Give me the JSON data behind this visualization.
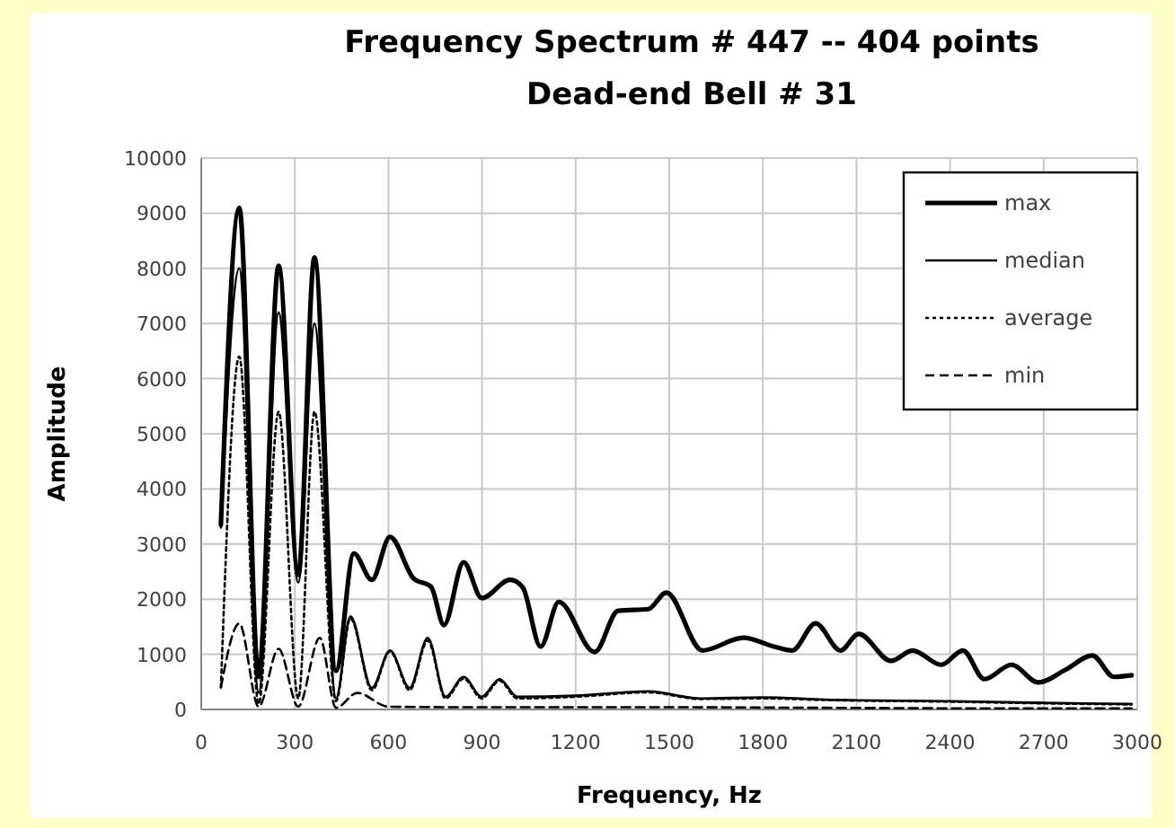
{
  "chart_data": {
    "type": "line",
    "title": "Frequency Spectrum # 447 -- 404 points",
    "subtitle": "Dead-end Bell # 31",
    "xlabel": "Frequency, Hz",
    "ylabel": "Amplitude",
    "xlim": [
      0,
      3000
    ],
    "xticks": [
      0,
      300,
      600,
      900,
      1200,
      1500,
      1800,
      2100,
      2400,
      2700,
      3000
    ],
    "ylim": [
      0,
      10000
    ],
    "yticks": [
      0,
      1000,
      2000,
      3000,
      4000,
      5000,
      6000,
      7000,
      8000,
      9000,
      10000
    ],
    "grid": true,
    "legend": "top right",
    "marker": "none",
    "series": [
      {
        "name": "max",
        "color": "#000000",
        "line_style": "solid",
        "x": [
          63,
          122,
          184,
          248,
          311,
          363,
          432,
          489,
          547,
          605,
          680,
          737,
          778,
          841,
          899,
          990,
          1030,
          1088,
          1146,
          1261,
          1336,
          1433,
          1491,
          1606,
          1738,
          1836,
          1894,
          1969,
          2049,
          2107,
          2211,
          2280,
          2372,
          2441,
          2510,
          2597,
          2683,
          2770,
          2856,
          2925,
          2982
        ],
        "values": [
          3350,
          9100,
          590,
          8050,
          2440,
          8200,
          700,
          2830,
          2350,
          3130,
          2380,
          2220,
          1530,
          2670,
          2020,
          2350,
          2220,
          1140,
          1950,
          1040,
          1790,
          1820,
          2120,
          1070,
          1300,
          1140,
          1070,
          1560,
          1070,
          1370,
          880,
          1070,
          810,
          1070,
          550,
          810,
          490,
          720,
          980,
          590,
          620
        ]
      },
      {
        "name": "median",
        "color": "#000000",
        "line_style": "solid",
        "x": [
          63,
          122,
          184,
          248,
          311,
          363,
          432,
          478,
          547,
          605,
          668,
          726,
          783,
          841,
          899,
          956,
          1013,
          1200,
          1433,
          1600,
          1800,
          2000,
          2400,
          2700,
          2982
        ],
        "values": [
          3300,
          8000,
          300,
          7200,
          2300,
          7000,
          200,
          1690,
          390,
          1070,
          390,
          1300,
          230,
          590,
          230,
          550,
          230,
          250,
          330,
          200,
          220,
          180,
          150,
          120,
          100
        ]
      },
      {
        "name": "average",
        "color": "#000000",
        "line_style": "dotted",
        "x": [
          63,
          122,
          184,
          248,
          311,
          363,
          432,
          478,
          547,
          605,
          668,
          726,
          783,
          841,
          899,
          956,
          1013,
          1200,
          1433,
          1600,
          1800,
          2000,
          2400,
          2700,
          2982
        ],
        "values": [
          400,
          6400,
          100,
          5400,
          200,
          5400,
          150,
          1650,
          350,
          1050,
          350,
          1250,
          200,
          560,
          200,
          520,
          200,
          230,
          310,
          190,
          200,
          170,
          140,
          110,
          90
        ]
      },
      {
        "name": "min",
        "color": "#000000",
        "line_style": "dashed",
        "x": [
          63,
          122,
          184,
          248,
          311,
          380,
          432,
          500,
          600,
          900,
          1200,
          1500,
          2000,
          2500,
          2982
        ],
        "values": [
          400,
          1560,
          50,
          1100,
          50,
          1300,
          30,
          300,
          50,
          40,
          40,
          40,
          30,
          20,
          20
        ]
      }
    ]
  }
}
